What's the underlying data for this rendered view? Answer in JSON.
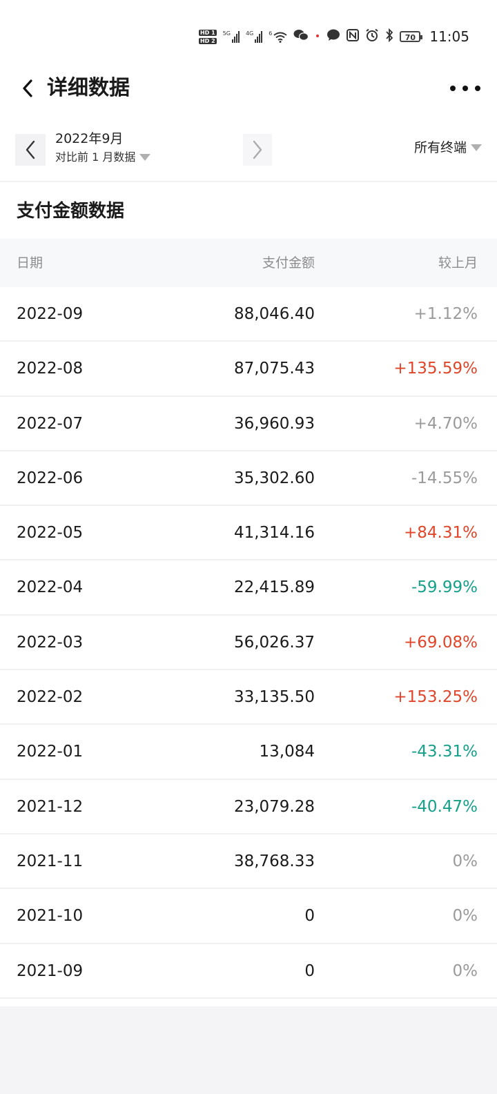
{
  "status_bar": {
    "hd1": "HD 1",
    "hd2": "HD 2",
    "sig1_label": "5G",
    "sig2_label": "4G",
    "wifi_label": "6",
    "battery": "70",
    "time": "11:05"
  },
  "header": {
    "title": "详细数据"
  },
  "filter": {
    "month": "2022年9月",
    "compare": "对比前 1 月数据",
    "terminal": "所有终端"
  },
  "section": {
    "title": "支付金额数据"
  },
  "table": {
    "headers": {
      "date": "日期",
      "amount": "支付金额",
      "change": "较上月"
    },
    "rows": [
      {
        "date": "2022-09",
        "amount": "88,046.40",
        "change": "+1.12%"
      },
      {
        "date": "2022-08",
        "amount": "87,075.43",
        "change": "+135.59%"
      },
      {
        "date": "2022-07",
        "amount": "36,960.93",
        "change": "+4.70%"
      },
      {
        "date": "2022-06",
        "amount": "35,302.60",
        "change": "-14.55%"
      },
      {
        "date": "2022-05",
        "amount": "41,314.16",
        "change": "+84.31%"
      },
      {
        "date": "2022-04",
        "amount": "22,415.89",
        "change": "-59.99%"
      },
      {
        "date": "2022-03",
        "amount": "56,026.37",
        "change": "+69.08%"
      },
      {
        "date": "2022-02",
        "amount": "33,135.50",
        "change": "+153.25%"
      },
      {
        "date": "2022-01",
        "amount": "13,084",
        "change": "-43.31%"
      },
      {
        "date": "2021-12",
        "amount": "23,079.28",
        "change": "-40.47%"
      },
      {
        "date": "2021-11",
        "amount": "38,768.33",
        "change": "0%"
      },
      {
        "date": "2021-10",
        "amount": "0",
        "change": "0%"
      },
      {
        "date": "2021-09",
        "amount": "0",
        "change": "0%"
      }
    ]
  },
  "colors": {
    "increase": "#e0452a",
    "decrease": "#15a08a",
    "neutral": "#9a9a9a"
  }
}
